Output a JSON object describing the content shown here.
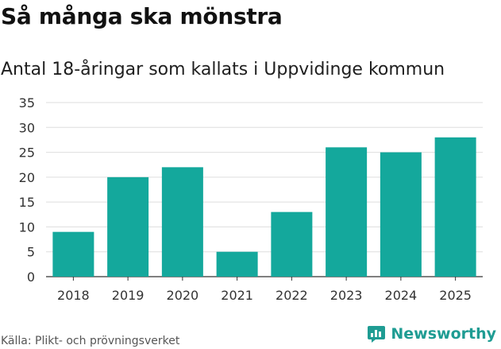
{
  "header": {
    "title": "Så många ska mönstra",
    "subtitle": "Antal 18-åringar som kallats i Uppvidinge kommun"
  },
  "footer": {
    "source": "Källa: Plikt- och prövningsverket",
    "brand": "Newsworthy"
  },
  "colors": {
    "bar": "#14a89c",
    "grid": "#dedede",
    "axis": "#333333",
    "brand": "#1f9c93"
  },
  "chart_data": {
    "type": "bar",
    "categories": [
      "2018",
      "2019",
      "2020",
      "2021",
      "2022",
      "2023",
      "2024",
      "2025"
    ],
    "values": [
      9,
      20,
      22,
      5,
      13,
      26,
      25,
      28
    ],
    "ylim": [
      0,
      35
    ],
    "yticks": [
      0,
      5,
      10,
      15,
      20,
      25,
      30,
      35
    ],
    "grid": true,
    "legend": "none"
  }
}
